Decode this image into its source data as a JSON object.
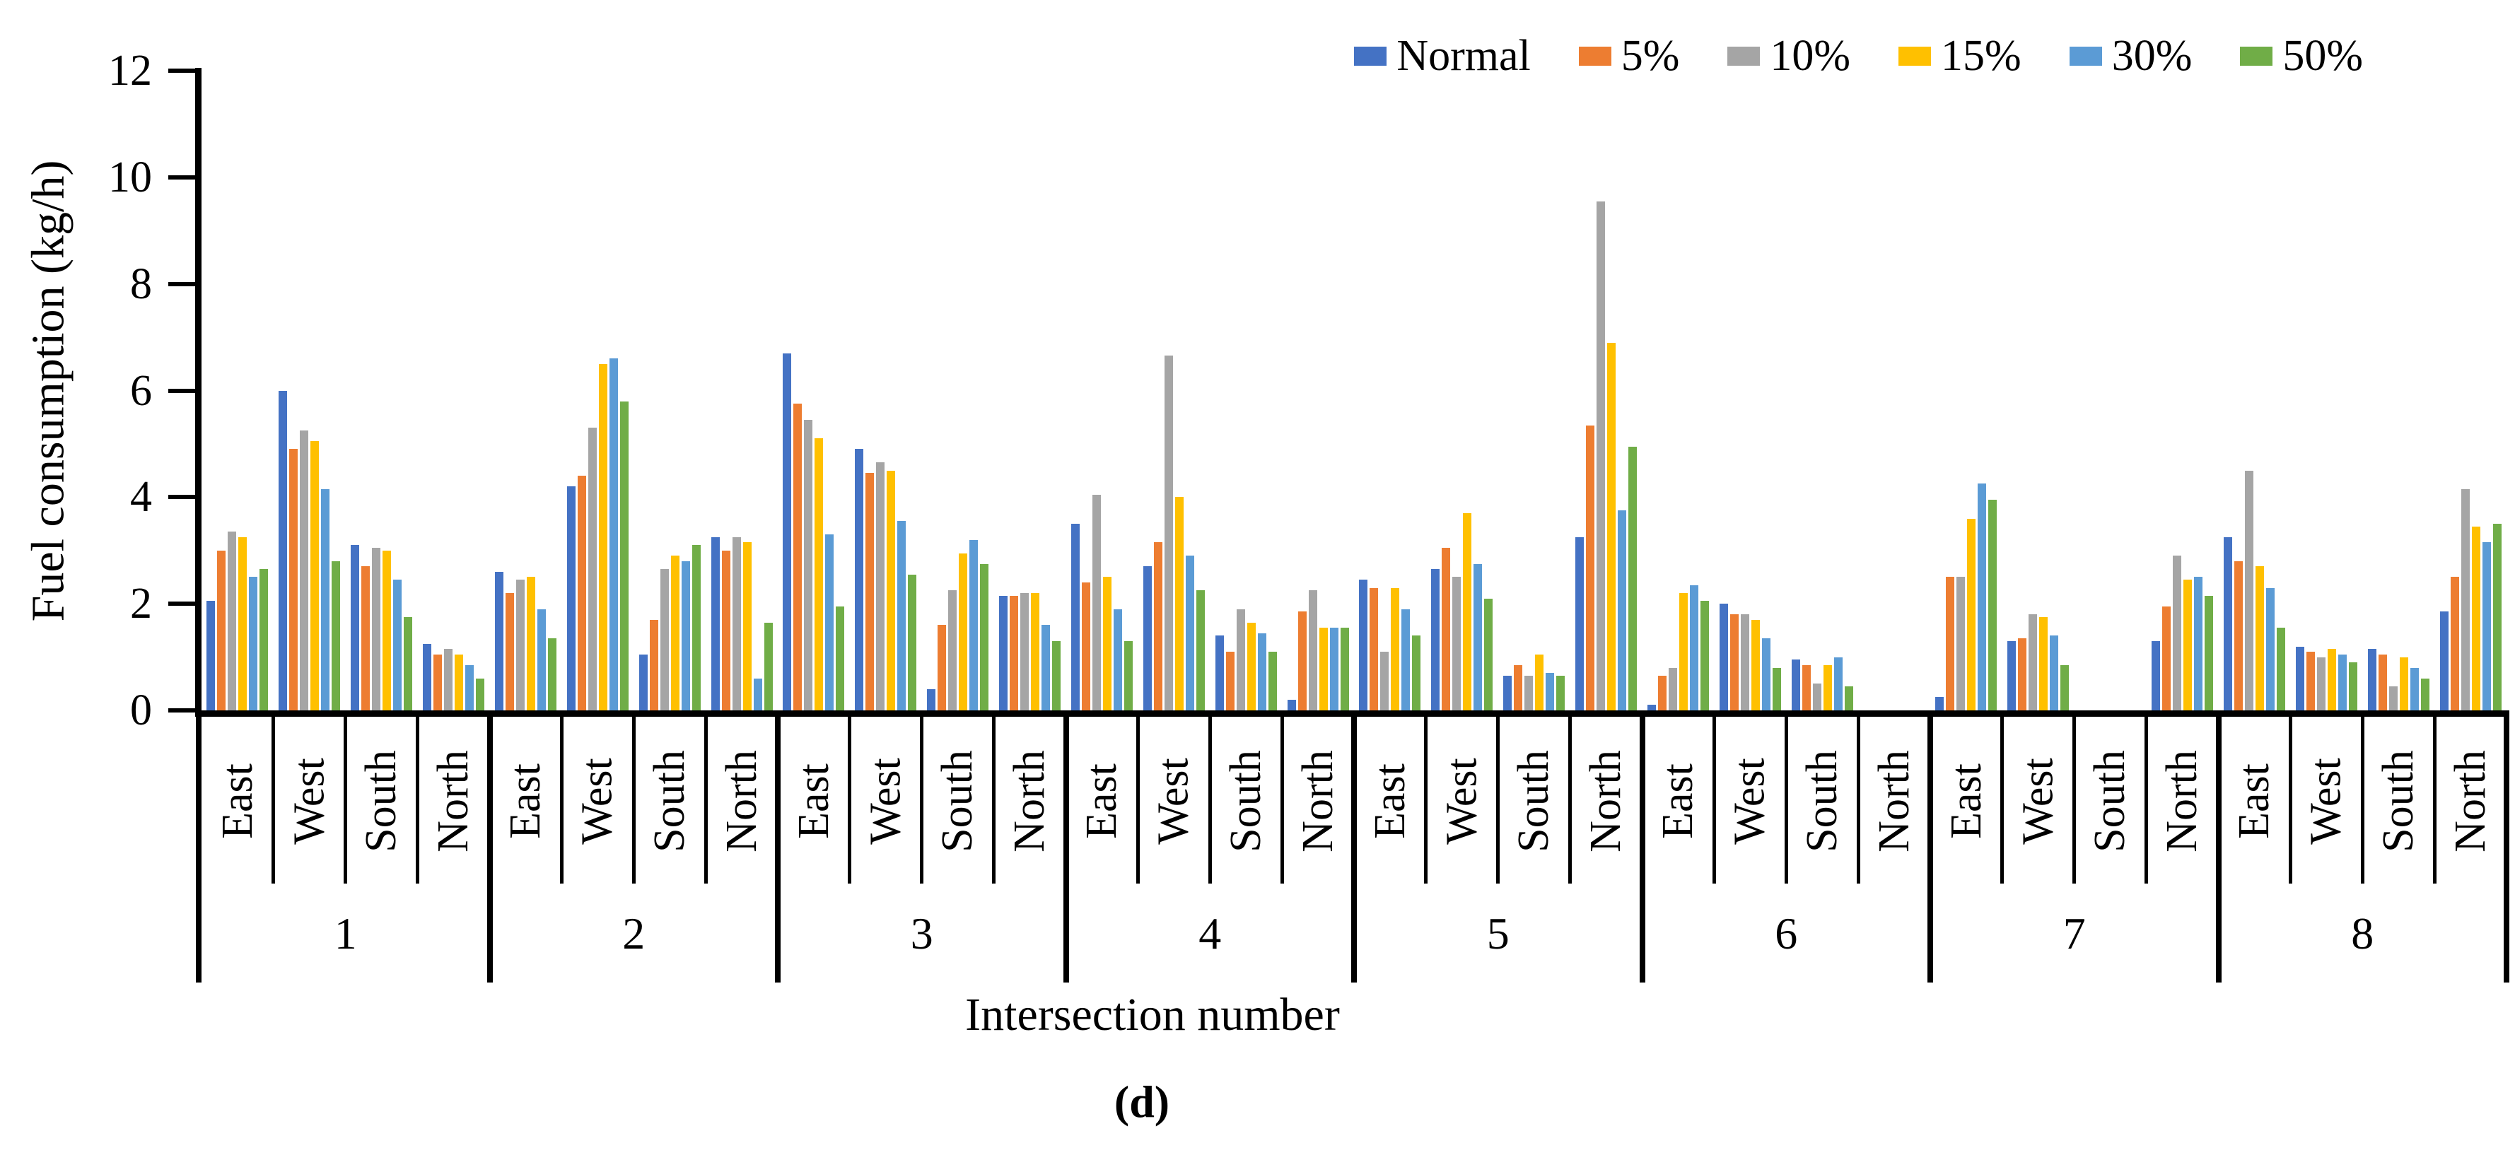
{
  "figure": {
    "caption": "(d)"
  },
  "chart_data": {
    "type": "bar",
    "title": "",
    "ylabel": "Fuel consumption (kg/h)",
    "xlabel": "Intersection number",
    "ylim": [
      0,
      12
    ],
    "yticks": [
      0,
      2,
      4,
      6,
      8,
      10,
      12
    ],
    "grid": false,
    "legend_position": "top-right",
    "series": [
      {
        "name": "Normal",
        "color": "#4472C4"
      },
      {
        "name": "5%",
        "color": "#ED7D31"
      },
      {
        "name": "10%",
        "color": "#A5A5A5"
      },
      {
        "name": "15%",
        "color": "#FFC000"
      },
      {
        "name": "30%",
        "color": "#5B9BD5"
      },
      {
        "name": "50%",
        "color": "#70AD47"
      }
    ],
    "directions": [
      "East",
      "West",
      "South",
      "North"
    ],
    "intersections": [
      "1",
      "2",
      "3",
      "4",
      "5",
      "6",
      "7",
      "8"
    ],
    "values": {
      "1": {
        "East": [
          2.05,
          3.0,
          3.35,
          3.25,
          2.5,
          2.65
        ],
        "West": [
          6.0,
          4.9,
          5.25,
          5.05,
          4.15,
          2.8
        ],
        "South": [
          3.1,
          2.7,
          3.05,
          3.0,
          2.45,
          1.75
        ],
        "North": [
          1.25,
          1.05,
          1.15,
          1.05,
          0.85,
          0.6
        ]
      },
      "2": {
        "East": [
          2.6,
          2.2,
          2.45,
          2.5,
          1.9,
          1.35
        ],
        "West": [
          4.2,
          4.4,
          5.3,
          6.5,
          6.6,
          5.8
        ],
        "South": [
          1.05,
          1.7,
          2.65,
          2.9,
          2.8,
          3.1
        ],
        "North": [
          3.25,
          3.0,
          3.25,
          3.15,
          0.6,
          1.65
        ]
      },
      "3": {
        "East": [
          6.7,
          5.75,
          5.45,
          5.1,
          3.3,
          1.95
        ],
        "West": [
          4.9,
          4.45,
          4.65,
          4.5,
          3.55,
          2.55
        ],
        "South": [
          0.4,
          1.6,
          2.25,
          2.95,
          3.2,
          2.75
        ],
        "North": [
          2.15,
          2.15,
          2.2,
          2.2,
          1.6,
          1.3
        ]
      },
      "4": {
        "East": [
          3.5,
          2.4,
          4.05,
          2.5,
          1.9,
          1.3
        ],
        "West": [
          2.7,
          3.15,
          6.65,
          4.0,
          2.9,
          2.25
        ],
        "South": [
          1.4,
          1.1,
          1.9,
          1.65,
          1.45,
          1.1
        ],
        "North": [
          0.2,
          1.85,
          2.25,
          1.55,
          1.55,
          1.55
        ]
      },
      "5": {
        "East": [
          2.45,
          2.3,
          1.1,
          2.3,
          1.9,
          1.4
        ],
        "West": [
          2.65,
          3.05,
          2.5,
          3.7,
          2.75,
          2.1
        ],
        "South": [
          0.65,
          0.85,
          0.65,
          1.05,
          0.7,
          0.65
        ],
        "North": [
          3.25,
          5.35,
          9.55,
          6.9,
          3.75,
          4.95
        ]
      },
      "6": {
        "East": [
          0.1,
          0.65,
          0.8,
          2.2,
          2.35,
          2.05
        ],
        "West": [
          2.0,
          1.8,
          1.8,
          1.7,
          1.35,
          0.8
        ],
        "South": [
          0.95,
          0.85,
          0.5,
          0.85,
          1.0,
          0.45
        ],
        "North": [
          0,
          0,
          0,
          0,
          0,
          0
        ]
      },
      "7": {
        "East": [
          0.25,
          2.5,
          2.5,
          3.6,
          4.25,
          3.95
        ],
        "West": [
          1.3,
          1.35,
          1.8,
          1.75,
          1.4,
          0.85
        ],
        "South": [
          0,
          0,
          0,
          0,
          0,
          0
        ],
        "North": [
          1.3,
          1.95,
          2.9,
          2.45,
          2.5,
          2.15
        ]
      },
      "8": {
        "East": [
          3.25,
          2.8,
          4.5,
          2.7,
          2.3,
          1.55
        ],
        "West": [
          1.2,
          1.1,
          1.0,
          1.15,
          1.05,
          0.9
        ],
        "South": [
          1.15,
          1.05,
          0.45,
          1.0,
          0.8,
          0.6
        ],
        "North": [
          1.85,
          2.5,
          4.15,
          3.45,
          3.15,
          3.5
        ]
      }
    }
  }
}
